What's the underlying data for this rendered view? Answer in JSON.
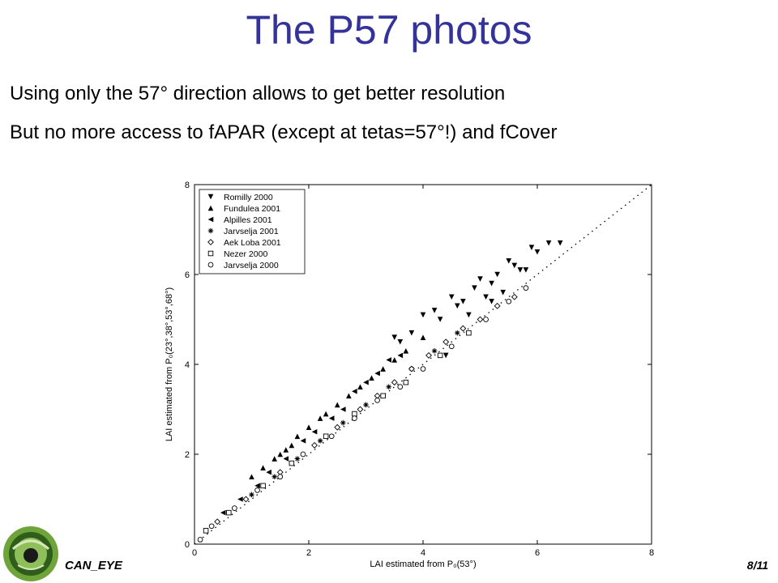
{
  "slide": {
    "title": "The P57 photos",
    "bullets": [
      "Using only the 57° direction allows to get better resolution",
      "But no more access to fAPAR (except at tetas=57°!) and fCover"
    ],
    "footer_label": "CAN_EYE",
    "page_number": "8/11"
  },
  "chart_data": {
    "type": "scatter",
    "title": "",
    "xlabel": "LAI estimated from P₀(53°)",
    "ylabel": "LAI estimated from P₀(23°,38°,53°,68°)",
    "xlim": [
      0,
      8
    ],
    "ylim": [
      0,
      8
    ],
    "xticks": [
      "0",
      "2",
      "4",
      "6",
      "8"
    ],
    "yticks": [
      "0",
      "2",
      "4",
      "6",
      "8"
    ],
    "grid": false,
    "legend_position": "top-left",
    "reference_line": {
      "style": "dotted",
      "from": [
        0,
        0
      ],
      "to": [
        8,
        8
      ]
    },
    "series": [
      {
        "name": "Romilly 2000",
        "marker": "triangle-down",
        "x": [
          3.5,
          3.6,
          3.8,
          4.0,
          4.2,
          4.3,
          4.5,
          4.6,
          4.7,
          4.9,
          5.0,
          5.1,
          5.2,
          5.3,
          5.4,
          5.5,
          5.6,
          5.8,
          5.9,
          6.0,
          6.2,
          6.4,
          4.4,
          4.8,
          5.2,
          5.7
        ],
        "y": [
          4.6,
          4.5,
          4.7,
          5.1,
          5.2,
          5.0,
          5.5,
          5.3,
          5.4,
          5.7,
          5.9,
          5.5,
          5.4,
          6.0,
          5.6,
          6.3,
          6.2,
          6.1,
          6.6,
          6.5,
          6.7,
          6.7,
          4.2,
          5.1,
          5.8,
          6.1
        ]
      },
      {
        "name": "Fundulea 2001",
        "marker": "triangle-up",
        "x": [
          1.0,
          1.2,
          1.4,
          1.5,
          1.7,
          1.8,
          2.0,
          2.3,
          2.5,
          2.7,
          3.1,
          3.3,
          3.7,
          4.0,
          2.2,
          1.6,
          2.9,
          3.5
        ],
        "y": [
          1.5,
          1.7,
          1.9,
          2.0,
          2.2,
          2.4,
          2.6,
          2.9,
          3.1,
          3.3,
          3.7,
          3.9,
          4.3,
          4.6,
          2.8,
          2.1,
          3.5,
          4.1
        ]
      },
      {
        "name": "Alpilles 2001",
        "marker": "triangle-left",
        "x": [
          0.5,
          0.8,
          1.1,
          1.3,
          1.6,
          1.9,
          2.1,
          2.4,
          2.6,
          2.8,
          3.0,
          3.2,
          3.4,
          3.6
        ],
        "y": [
          0.7,
          1.0,
          1.3,
          1.6,
          1.9,
          2.3,
          2.5,
          2.8,
          3.0,
          3.4,
          3.6,
          3.8,
          4.1,
          4.2
        ]
      },
      {
        "name": "Jarvselja 2001",
        "marker": "star",
        "x": [
          1.0,
          1.4,
          1.8,
          2.2,
          2.6,
          3.0,
          3.4,
          3.8,
          4.2,
          4.6
        ],
        "y": [
          1.1,
          1.5,
          1.9,
          2.3,
          2.7,
          3.1,
          3.5,
          3.9,
          4.3,
          4.7
        ]
      },
      {
        "name": "Aek Loba 2001",
        "marker": "diamond",
        "x": [
          0.4,
          0.9,
          1.5,
          2.1,
          2.5,
          2.9,
          3.2,
          3.5,
          3.8,
          4.1,
          4.4,
          4.7,
          5.0,
          5.3,
          5.6
        ],
        "y": [
          0.5,
          1.0,
          1.6,
          2.2,
          2.6,
          3.0,
          3.3,
          3.6,
          3.9,
          4.2,
          4.5,
          4.8,
          5.0,
          5.3,
          5.5
        ]
      },
      {
        "name": "Nezer 2000",
        "marker": "square",
        "x": [
          0.2,
          0.6,
          1.2,
          1.7,
          2.3,
          2.8,
          3.3,
          3.7,
          4.3,
          4.8
        ],
        "y": [
          0.3,
          0.7,
          1.3,
          1.8,
          2.4,
          2.9,
          3.3,
          3.6,
          4.2,
          4.7
        ]
      },
      {
        "name": "Jarvselja 2000",
        "marker": "circle",
        "x": [
          0.1,
          0.3,
          0.7,
          1.1,
          1.5,
          1.9,
          2.4,
          2.8,
          3.2,
          3.6,
          4.0,
          4.5,
          5.1,
          5.5,
          5.8
        ],
        "y": [
          0.1,
          0.4,
          0.8,
          1.2,
          1.5,
          2.0,
          2.4,
          2.8,
          3.2,
          3.5,
          3.9,
          4.4,
          5.0,
          5.4,
          5.7
        ]
      }
    ]
  }
}
